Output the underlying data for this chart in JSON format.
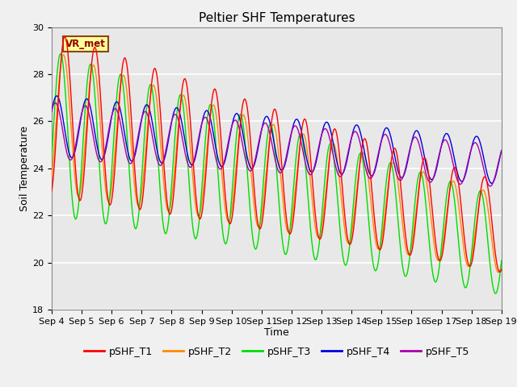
{
  "title": "Peltier SHF Temperatures",
  "xlabel": "Time",
  "ylabel": "Soil Temperature",
  "ylim": [
    18,
    30
  ],
  "n_days": 15,
  "x_tick_labels": [
    "Sep 4",
    "Sep 5",
    "Sep 6",
    "Sep 7",
    "Sep 8",
    "Sep 9",
    "Sep 10",
    "Sep 11",
    "Sep 12",
    "Sep 13",
    "Sep 14",
    "Sep 15",
    "Sep 16",
    "Sep 17",
    "Sep 18",
    "Sep 19"
  ],
  "yticks": [
    18,
    20,
    22,
    24,
    26,
    28,
    30
  ],
  "annotation_text": "VR_met",
  "colors": {
    "T1": "#ff0000",
    "T2": "#ff8800",
    "T3": "#00dd00",
    "T4": "#0000dd",
    "T5": "#aa00aa"
  },
  "legend_labels": [
    "pSHF_T1",
    "pSHF_T2",
    "pSHF_T3",
    "pSHF_T4",
    "pSHF_T5"
  ],
  "plot_bg": "#e8e8e8",
  "fig_bg": "#f0f0f0",
  "grid_color": "#ffffff",
  "title_fontsize": 11,
  "axis_label_fontsize": 9,
  "tick_fontsize": 8,
  "legend_fontsize": 9
}
